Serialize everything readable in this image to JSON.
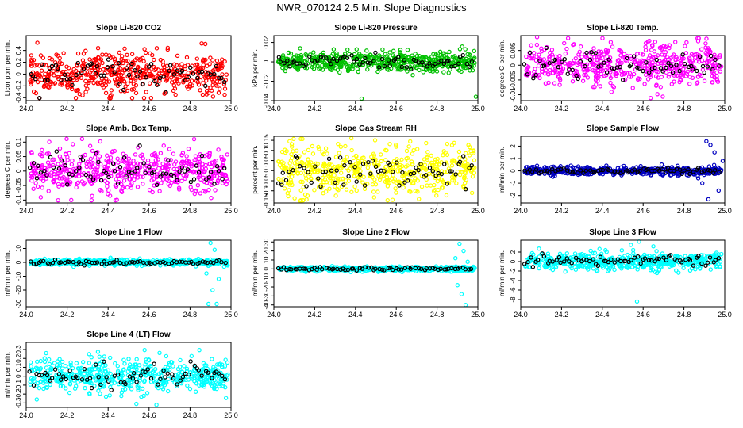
{
  "title": "NWR_070124  2.5 Min. Slope Diagnostics",
  "chart_data": [
    {
      "type": "scatter",
      "title": "Slope Li-820 CO2",
      "ylabel": "Licor ppm per min.",
      "xlim": [
        24.0,
        25.0
      ],
      "xticks": [
        24.0,
        24.2,
        24.4,
        24.6,
        24.8,
        25.0
      ],
      "ylim": [
        -0.45,
        0.65
      ],
      "yticks": [
        -0.4,
        -0.2,
        0.0,
        0.2,
        0.4
      ],
      "color": "#ff0000",
      "spread": 0.22,
      "outliers": []
    },
    {
      "type": "scatter",
      "title": "Slope Li-820 Pressure",
      "ylabel": "kPa per min.",
      "xlim": [
        24.0,
        25.0
      ],
      "xticks": [
        24.0,
        24.2,
        24.4,
        24.6,
        24.8,
        25.0
      ],
      "ylim": [
        -0.04,
        0.027
      ],
      "yticks": [
        -0.04,
        -0.02,
        0.0,
        0.02
      ],
      "color": "#00c000",
      "spread": 0.006,
      "outliers": [
        [
          24.43,
          -0.038
        ],
        [
          24.99,
          -0.036
        ],
        [
          24.06,
          -0.006
        ]
      ]
    },
    {
      "type": "scatter",
      "title": "Slope Li-820 Temp.",
      "ylabel": "degrees C per min.",
      "xlim": [
        24.0,
        25.0
      ],
      "xticks": [
        24.0,
        24.2,
        24.4,
        24.6,
        24.8,
        25.0
      ],
      "ylim": [
        -0.012,
        0.01
      ],
      "yticks": [
        -0.01,
        -0.005,
        0.0,
        0.005
      ],
      "color": "#ff00ff",
      "spread": 0.004,
      "outliers": [
        [
          24.08,
          0.0095
        ],
        [
          24.67,
          -0.0098
        ]
      ]
    },
    {
      "type": "scatter",
      "title": "Slope Amb. Box Temp.",
      "ylabel": "degrees C per min.",
      "xlim": [
        24.0,
        25.0
      ],
      "xticks": [
        24.0,
        24.2,
        24.4,
        24.6,
        24.8,
        25.0
      ],
      "ylim": [
        -0.11,
        0.12
      ],
      "yticks": [
        -0.1,
        -0.05,
        0.0,
        0.05,
        0.1
      ],
      "color": "#ff00ff",
      "spread": 0.045,
      "outliers": [
        [
          24.82,
          0.11
        ],
        [
          24.22,
          -0.1
        ]
      ]
    },
    {
      "type": "scatter",
      "title": "Slope Gas Stream RH",
      "ylabel": "percent per min.",
      "xlim": [
        24.0,
        25.0
      ],
      "xticks": [
        24.0,
        24.2,
        24.4,
        24.6,
        24.8,
        25.0
      ],
      "ylim": [
        -0.16,
        0.17
      ],
      "yticks": [
        -0.15,
        -0.1,
        -0.05,
        0.0,
        0.05,
        0.1,
        0.15
      ],
      "color": "#ffff00",
      "spread": 0.07,
      "outliers": [
        [
          24.38,
          0.16
        ],
        [
          24.13,
          -0.15
        ]
      ]
    },
    {
      "type": "scatter",
      "title": "Slope Sample Flow",
      "ylabel": "ml/min per min.",
      "xlim": [
        24.0,
        25.0
      ],
      "xticks": [
        24.0,
        24.2,
        24.4,
        24.6,
        24.8,
        25.0
      ],
      "ylim": [
        -2.6,
        2.8
      ],
      "yticks": [
        -2,
        -1,
        0,
        1,
        2
      ],
      "color": "#0000c0",
      "spread": 0.2,
      "outliers": [
        [
          24.91,
          2.4
        ],
        [
          24.93,
          2.1
        ],
        [
          24.95,
          1.5
        ],
        [
          24.89,
          -1.0
        ],
        [
          24.92,
          -2.3
        ],
        [
          24.97,
          -1.6
        ],
        [
          24.87,
          -0.6
        ],
        [
          24.99,
          0.8
        ]
      ]
    },
    {
      "type": "scatter",
      "title": "Slope Line 1 Flow",
      "ylabel": "ml/min per min.",
      "xlim": [
        24.0,
        25.0
      ],
      "xticks": [
        24.0,
        24.2,
        24.4,
        24.6,
        24.8,
        25.0
      ],
      "ylim": [
        -32,
        16
      ],
      "yticks": [
        -30,
        -20,
        -10,
        0,
        10
      ],
      "color": "#00ffff",
      "spread": 1.2,
      "outliers": [
        [
          24.9,
          14
        ],
        [
          24.92,
          9
        ],
        [
          24.89,
          -30
        ],
        [
          24.93,
          -30
        ],
        [
          24.91,
          -20
        ],
        [
          24.94,
          -12
        ],
        [
          24.88,
          -8
        ]
      ]
    },
    {
      "type": "scatter",
      "title": "Slope Line 2 Flow",
      "ylabel": "ml/min per min.",
      "xlim": [
        24.0,
        25.0
      ],
      "xticks": [
        24.0,
        24.2,
        24.4,
        24.6,
        24.8,
        25.0
      ],
      "ylim": [
        -42,
        32
      ],
      "yticks": [
        -40,
        -30,
        -20,
        -10,
        0,
        10,
        20,
        30
      ],
      "color": "#00ffff",
      "spread": 1.5,
      "outliers": [
        [
          24.91,
          28
        ],
        [
          24.93,
          20
        ],
        [
          24.89,
          12
        ],
        [
          24.92,
          -28
        ],
        [
          24.94,
          -40
        ],
        [
          24.9,
          -18
        ],
        [
          24.95,
          8
        ]
      ]
    },
    {
      "type": "scatter",
      "title": "Slope Line 3 Flow",
      "ylabel": "ml/min per min.",
      "xlim": [
        24.0,
        25.0
      ],
      "xticks": [
        24.0,
        24.2,
        24.4,
        24.6,
        24.8,
        25.0
      ],
      "ylim": [
        -9.5,
        4.5
      ],
      "yticks": [
        -8,
        -6,
        -4,
        -2,
        0,
        2
      ],
      "color": "#00ffff",
      "spread": 1.0,
      "outliers": [
        [
          24.57,
          -8.4
        ],
        [
          24.58,
          4.2
        ],
        [
          24.54,
          3.5
        ],
        [
          24.65,
          3.2
        ]
      ]
    },
    {
      "type": "scatter",
      "title": "Slope Line 4 (LT) Flow",
      "ylabel": "ml/min per min.",
      "xlim": [
        24.0,
        25.0
      ],
      "xticks": [
        24.0,
        24.2,
        24.4,
        24.6,
        24.8,
        25.0
      ],
      "ylim": [
        -0.35,
        0.38
      ],
      "yticks": [
        -0.3,
        -0.2,
        -0.1,
        0.0,
        0.1,
        0.2,
        0.3
      ],
      "color": "#00ffff",
      "spread": 0.12,
      "outliers": []
    }
  ]
}
